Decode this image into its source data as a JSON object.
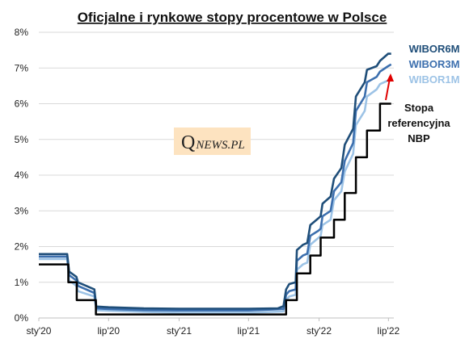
{
  "logo": {
    "q": "Q",
    "rest": "NEWS.PL",
    "bg": "#fde3c0"
  },
  "chart_data": {
    "type": "line",
    "title": "Oficjalne i rynkowe stopy procentowe w Polsce",
    "xlabel": "",
    "ylabel": "",
    "x_range": [
      "2020-01-01",
      "2022-07-15"
    ],
    "y_range": [
      0,
      8
    ],
    "x_ticks": [
      {
        "date": "2020-01-01",
        "label": "sty'20"
      },
      {
        "date": "2020-07-01",
        "label": "lip'20"
      },
      {
        "date": "2021-01-01",
        "label": "sty'21"
      },
      {
        "date": "2021-07-01",
        "label": "lip'21"
      },
      {
        "date": "2022-01-01",
        "label": "sty'22"
      },
      {
        "date": "2022-07-01",
        "label": "lip'22"
      }
    ],
    "y_ticks": [
      {
        "value": 0,
        "label": "0%"
      },
      {
        "value": 1,
        "label": "1%"
      },
      {
        "value": 2,
        "label": "2%"
      },
      {
        "value": 3,
        "label": "3%"
      },
      {
        "value": 4,
        "label": "4%"
      },
      {
        "value": 5,
        "label": "5%"
      },
      {
        "value": 6,
        "label": "6%"
      },
      {
        "value": 7,
        "label": "7%"
      },
      {
        "value": 8,
        "label": "8%"
      }
    ],
    "grid": true,
    "series": [
      {
        "name": "WIBOR6M",
        "color": "#1f4e79",
        "points": [
          [
            "2020-01-01",
            1.79
          ],
          [
            "2020-03-15",
            1.79
          ],
          [
            "2020-03-20",
            1.3
          ],
          [
            "2020-04-08",
            1.15
          ],
          [
            "2020-04-12",
            1.0
          ],
          [
            "2020-05-25",
            0.8
          ],
          [
            "2020-05-30",
            0.32
          ],
          [
            "2020-07-01",
            0.3
          ],
          [
            "2020-10-01",
            0.27
          ],
          [
            "2021-01-01",
            0.26
          ],
          [
            "2021-07-01",
            0.26
          ],
          [
            "2021-09-15",
            0.27
          ],
          [
            "2021-09-30",
            0.33
          ],
          [
            "2021-10-07",
            0.8
          ],
          [
            "2021-10-15",
            0.95
          ],
          [
            "2021-11-01",
            1.0
          ],
          [
            "2021-11-04",
            1.9
          ],
          [
            "2021-11-20",
            2.05
          ],
          [
            "2021-12-01",
            2.1
          ],
          [
            "2021-12-09",
            2.6
          ],
          [
            "2021-12-31",
            2.8
          ],
          [
            "2022-01-05",
            2.85
          ],
          [
            "2022-01-10",
            3.2
          ],
          [
            "2022-01-31",
            3.4
          ],
          [
            "2022-02-09",
            3.9
          ],
          [
            "2022-02-28",
            4.2
          ],
          [
            "2022-03-09",
            4.85
          ],
          [
            "2022-03-31",
            5.3
          ],
          [
            "2022-04-07",
            6.2
          ],
          [
            "2022-04-30",
            6.6
          ],
          [
            "2022-05-06",
            6.95
          ],
          [
            "2022-05-31",
            7.05
          ],
          [
            "2022-06-09",
            7.2
          ],
          [
            "2022-06-30",
            7.4
          ],
          [
            "2022-07-08",
            7.4
          ]
        ]
      },
      {
        "name": "WIBOR3M",
        "color": "#3c6fae",
        "points": [
          [
            "2020-01-01",
            1.72
          ],
          [
            "2020-03-15",
            1.72
          ],
          [
            "2020-03-20",
            1.2
          ],
          [
            "2020-04-08",
            1.05
          ],
          [
            "2020-04-12",
            0.9
          ],
          [
            "2020-05-25",
            0.7
          ],
          [
            "2020-05-30",
            0.27
          ],
          [
            "2020-07-01",
            0.25
          ],
          [
            "2020-10-01",
            0.22
          ],
          [
            "2021-01-01",
            0.21
          ],
          [
            "2021-07-01",
            0.21
          ],
          [
            "2021-09-30",
            0.25
          ],
          [
            "2021-10-07",
            0.65
          ],
          [
            "2021-10-15",
            0.75
          ],
          [
            "2021-11-01",
            0.8
          ],
          [
            "2021-11-04",
            1.6
          ],
          [
            "2021-11-20",
            1.75
          ],
          [
            "2021-12-01",
            1.8
          ],
          [
            "2021-12-09",
            2.3
          ],
          [
            "2021-12-31",
            2.45
          ],
          [
            "2022-01-05",
            2.5
          ],
          [
            "2022-01-10",
            2.85
          ],
          [
            "2022-01-31",
            3.0
          ],
          [
            "2022-02-09",
            3.55
          ],
          [
            "2022-02-28",
            3.8
          ],
          [
            "2022-03-09",
            4.4
          ],
          [
            "2022-03-31",
            4.9
          ],
          [
            "2022-04-07",
            5.8
          ],
          [
            "2022-04-30",
            6.2
          ],
          [
            "2022-05-06",
            6.6
          ],
          [
            "2022-05-31",
            6.75
          ],
          [
            "2022-06-09",
            6.9
          ],
          [
            "2022-06-30",
            7.05
          ],
          [
            "2022-07-08",
            7.1
          ]
        ]
      },
      {
        "name": "WIBOR1M",
        "color": "#9dc3e6",
        "points": [
          [
            "2020-01-01",
            1.65
          ],
          [
            "2020-03-15",
            1.65
          ],
          [
            "2020-03-20",
            1.05
          ],
          [
            "2020-04-08",
            0.9
          ],
          [
            "2020-04-12",
            0.75
          ],
          [
            "2020-05-25",
            0.6
          ],
          [
            "2020-05-30",
            0.22
          ],
          [
            "2020-07-01",
            0.2
          ],
          [
            "2020-10-01",
            0.17
          ],
          [
            "2021-01-01",
            0.15
          ],
          [
            "2021-07-01",
            0.15
          ],
          [
            "2021-09-30",
            0.18
          ],
          [
            "2021-10-07",
            0.5
          ],
          [
            "2021-10-15",
            0.6
          ],
          [
            "2021-11-01",
            0.65
          ],
          [
            "2021-11-04",
            1.35
          ],
          [
            "2021-11-20",
            1.5
          ],
          [
            "2021-12-01",
            1.55
          ],
          [
            "2021-12-09",
            2.05
          ],
          [
            "2021-12-31",
            2.25
          ],
          [
            "2022-01-05",
            2.3
          ],
          [
            "2022-01-10",
            2.6
          ],
          [
            "2022-01-31",
            2.75
          ],
          [
            "2022-02-09",
            3.3
          ],
          [
            "2022-02-28",
            3.55
          ],
          [
            "2022-03-09",
            4.1
          ],
          [
            "2022-03-31",
            4.6
          ],
          [
            "2022-04-07",
            5.4
          ],
          [
            "2022-04-30",
            5.8
          ],
          [
            "2022-05-06",
            6.2
          ],
          [
            "2022-05-31",
            6.4
          ],
          [
            "2022-06-09",
            6.55
          ],
          [
            "2022-06-30",
            6.65
          ],
          [
            "2022-07-08",
            6.7
          ]
        ]
      },
      {
        "name": "Stopa referencyjna NBP",
        "color": "#000000",
        "step": true,
        "points": [
          [
            "2020-01-01",
            1.5
          ],
          [
            "2020-03-18",
            1.0
          ],
          [
            "2020-04-09",
            0.5
          ],
          [
            "2020-05-29",
            0.1
          ],
          [
            "2021-10-07",
            0.5
          ],
          [
            "2021-11-04",
            1.25
          ],
          [
            "2021-12-09",
            1.75
          ],
          [
            "2022-01-05",
            2.25
          ],
          [
            "2022-02-09",
            2.75
          ],
          [
            "2022-03-09",
            3.5
          ],
          [
            "2022-04-07",
            4.5
          ],
          [
            "2022-05-06",
            5.25
          ],
          [
            "2022-06-09",
            6.0
          ],
          [
            "2022-07-08",
            6.0
          ]
        ]
      }
    ],
    "annotations": [
      {
        "text_lines": [
          "Stopa",
          "referencyjna",
          "NBP"
        ],
        "arrow_color": "#e00000"
      }
    ]
  }
}
